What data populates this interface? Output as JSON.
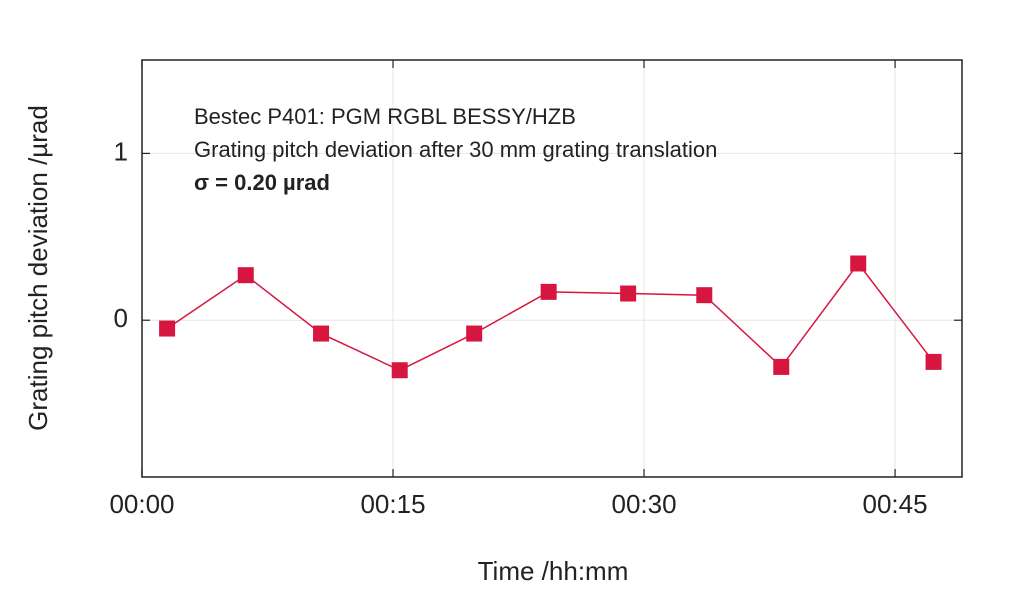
{
  "chart_data": {
    "type": "line",
    "xlabel": "Time /hh:mm",
    "ylabel": "Grating pitch deviation /µrad",
    "annotations": [
      "Bestec P401: PGM RGBL BESSY/HZB",
      "Grating pitch deviation after 30 mm grating translation",
      "σ = 0.20 µrad"
    ],
    "x": [
      1.5,
      6.2,
      10.7,
      15.4,
      19.85,
      24.3,
      29.05,
      33.6,
      38.2,
      42.8,
      47.3
    ],
    "series": [
      {
        "name": "Grating pitch deviation",
        "color": "#d6163f",
        "values": [
          -0.05,
          0.27,
          -0.08,
          -0.3,
          -0.08,
          0.17,
          0.16,
          0.15,
          -0.28,
          0.34,
          -0.25
        ]
      }
    ],
    "xlim": [
      0,
      49
    ],
    "xticks": [
      {
        "value": 0,
        "label": "00:00"
      },
      {
        "value": 15,
        "label": "00:15"
      },
      {
        "value": 30,
        "label": "00:30"
      },
      {
        "value": 45,
        "label": "00:45"
      }
    ],
    "ylim": [
      -0.94,
      1.56
    ],
    "yticks": [
      0,
      1
    ],
    "grid": true
  }
}
